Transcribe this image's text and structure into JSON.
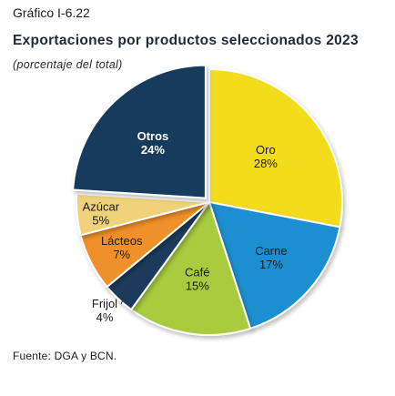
{
  "figure_label": "Gráfico I-6.22",
  "chart_data": {
    "type": "pie",
    "title": "Exportaciones por productos seleccionados 2023",
    "subtitle": "(porcentaje del total)",
    "categories": [
      "Oro",
      "Carne",
      "Café",
      "Frijol",
      "Lácteos",
      "Azúcar",
      "Otros"
    ],
    "values": [
      28,
      17,
      15,
      4,
      7,
      5,
      24
    ],
    "value_labels": [
      "28%",
      "17%",
      "15%",
      "4%",
      "7%",
      "5%",
      "24%"
    ],
    "colors": [
      "#f2dc1e",
      "#1c8fd0",
      "#a8cc3c",
      "#1a3a5c",
      "#f0902c",
      "#f0d27a",
      "#173a5c"
    ],
    "source": "Fuente: DGA y BCN."
  }
}
